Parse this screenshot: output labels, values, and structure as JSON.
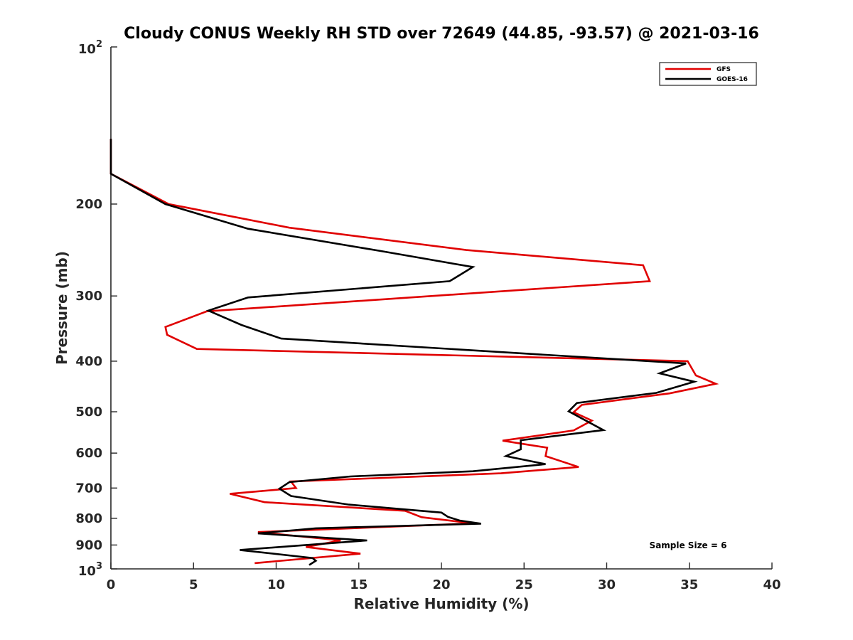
{
  "chart_data": {
    "type": "line",
    "title": "Cloudy CONUS Weekly RH STD over 72649 (44.85, -93.57) @ 2021-03-16",
    "xlabel": "Relative Humidity (%)",
    "ylabel": "Pressure (mb)",
    "xlim": [
      0,
      40
    ],
    "ylim": [
      100,
      1000
    ],
    "y_scale": "log",
    "y_reversed": true,
    "x_ticks": [
      0,
      5,
      10,
      15,
      20,
      25,
      30,
      35,
      40
    ],
    "y_ticks": [
      200,
      300,
      400,
      500,
      600,
      700,
      800,
      900
    ],
    "y_tick_labels": [
      "200",
      "300",
      "400",
      "500",
      "600",
      "700",
      "800",
      "900"
    ],
    "y_top_label": {
      "base": "10",
      "exp": "2"
    },
    "y_bottom_label": {
      "base": "10",
      "exp": "3"
    },
    "grid": false,
    "legend_position": "top-right",
    "annotation": "Sample Size = 6",
    "series": [
      {
        "name": "GFS",
        "color": "#e00000",
        "points": [
          [
            0,
            150
          ],
          [
            0,
            175
          ],
          [
            3.5,
            200
          ],
          [
            10.8,
            222
          ],
          [
            21.5,
            245
          ],
          [
            32.2,
            262
          ],
          [
            32.6,
            281
          ],
          [
            5.8,
            321
          ],
          [
            3.3,
            344
          ],
          [
            3.4,
            356
          ],
          [
            5.2,
            379
          ],
          [
            34.9,
            400
          ],
          [
            35.4,
            426
          ],
          [
            36.6,
            442
          ],
          [
            33.8,
            461
          ],
          [
            28.5,
            485
          ],
          [
            28.0,
            501
          ],
          [
            29.1,
            520
          ],
          [
            28.0,
            543
          ],
          [
            23.7,
            568
          ],
          [
            26.4,
            586
          ],
          [
            26.3,
            608
          ],
          [
            28.3,
            638
          ],
          [
            23.6,
            656
          ],
          [
            10.9,
            680
          ],
          [
            11.2,
            700
          ],
          [
            7.2,
            718
          ],
          [
            9.3,
            745
          ],
          [
            17.8,
            774
          ],
          [
            18.8,
            796
          ],
          [
            21.9,
            818
          ],
          [
            8.9,
            850
          ],
          [
            13.9,
            882
          ],
          [
            11.8,
            908
          ],
          [
            15.1,
            935
          ],
          [
            8.7,
            975
          ]
        ]
      },
      {
        "name": "GOES-16",
        "color": "#000000",
        "points": [
          [
            0,
            150
          ],
          [
            0,
            175
          ],
          [
            3.3,
            200
          ],
          [
            8.3,
            223
          ],
          [
            16.3,
            246
          ],
          [
            21.9,
            264
          ],
          [
            20.5,
            281
          ],
          [
            8.3,
            302
          ],
          [
            5.9,
            320
          ],
          [
            7.9,
            341
          ],
          [
            10.3,
            362
          ],
          [
            34.8,
            404
          ],
          [
            33.2,
            422
          ],
          [
            35.3,
            438
          ],
          [
            33.0,
            460
          ],
          [
            28.2,
            481
          ],
          [
            27.7,
            499
          ],
          [
            29.8,
            542
          ],
          [
            24.8,
            567
          ],
          [
            24.8,
            590
          ],
          [
            23.9,
            608
          ],
          [
            26.3,
            630
          ],
          [
            21.9,
            650
          ],
          [
            14.5,
            665
          ],
          [
            10.8,
            682
          ],
          [
            10.2,
            702
          ],
          [
            10.9,
            725
          ],
          [
            14.4,
            753
          ],
          [
            20.0,
            780
          ],
          [
            20.4,
            795
          ],
          [
            21.1,
            808
          ],
          [
            22.4,
            819
          ],
          [
            12.4,
            836
          ],
          [
            8.9,
            855
          ],
          [
            15.5,
            882
          ],
          [
            7.8,
            920
          ],
          [
            12.2,
            953
          ],
          [
            12.4,
            965
          ],
          [
            12.0,
            983
          ]
        ]
      }
    ]
  }
}
